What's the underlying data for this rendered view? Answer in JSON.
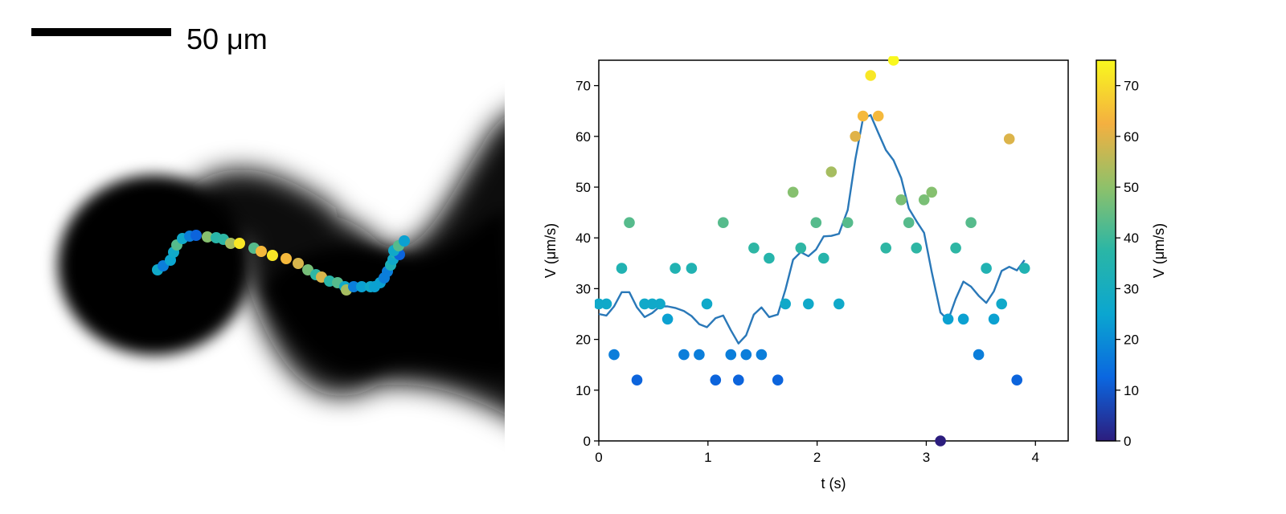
{
  "scale_bar": {
    "label": "50 μm"
  },
  "colors": {
    "line": "#2a78b8",
    "colormap_stops": [
      "#2c1d7e",
      "#0b67e0",
      "#0ba6d0",
      "#2ab6a6",
      "#8ec16a",
      "#f4b040",
      "#f9f81e"
    ]
  },
  "micrograph": {
    "description_icon": "bacterium-cell-image",
    "track_points": [
      {
        "x": 196,
        "y": 336,
        "v": 27
      },
      {
        "x": 203,
        "y": 331,
        "v": 17
      },
      {
        "x": 212,
        "y": 324,
        "v": 25
      },
      {
        "x": 216,
        "y": 314,
        "v": 27
      },
      {
        "x": 220,
        "y": 305,
        "v": 43
      },
      {
        "x": 227,
        "y": 297,
        "v": 27
      },
      {
        "x": 236,
        "y": 294,
        "v": 17
      },
      {
        "x": 244,
        "y": 293,
        "v": 12
      },
      {
        "x": 258,
        "y": 295,
        "v": 49
      },
      {
        "x": 269,
        "y": 296,
        "v": 37
      },
      {
        "x": 278,
        "y": 298,
        "v": 38
      },
      {
        "x": 287,
        "y": 303,
        "v": 53
      },
      {
        "x": 298,
        "y": 303,
        "v": 72
      },
      {
        "x": 316,
        "y": 309,
        "v": 43
      },
      {
        "x": 325,
        "y": 313,
        "v": 64
      },
      {
        "x": 339,
        "y": 318,
        "v": 72
      },
      {
        "x": 356,
        "y": 322,
        "v": 64
      },
      {
        "x": 371,
        "y": 328,
        "v": 59
      },
      {
        "x": 383,
        "y": 336,
        "v": 47
      },
      {
        "x": 393,
        "y": 342,
        "v": 38
      },
      {
        "x": 400,
        "y": 345,
        "v": 59
      },
      {
        "x": 410,
        "y": 350,
        "v": 37
      },
      {
        "x": 420,
        "y": 352,
        "v": 43
      },
      {
        "x": 429,
        "y": 357,
        "v": 27
      },
      {
        "x": 431,
        "y": 361,
        "v": 53
      },
      {
        "x": 440,
        "y": 357,
        "v": 17
      },
      {
        "x": 450,
        "y": 357,
        "v": 24
      },
      {
        "x": 461,
        "y": 357,
        "v": 27
      },
      {
        "x": 466,
        "y": 357,
        "v": 24
      },
      {
        "x": 473,
        "y": 352,
        "v": 24
      },
      {
        "x": 478,
        "y": 346,
        "v": 17
      },
      {
        "x": 482,
        "y": 338,
        "v": 17
      },
      {
        "x": 486,
        "y": 330,
        "v": 33
      },
      {
        "x": 489,
        "y": 323,
        "v": 27
      },
      {
        "x": 492,
        "y": 315,
        "v": 33
      },
      {
        "x": 497,
        "y": 317,
        "v": 12
      },
      {
        "x": 490,
        "y": 312,
        "v": 27
      },
      {
        "x": 496,
        "y": 306,
        "v": 43
      },
      {
        "x": 503,
        "y": 300,
        "v": 24
      }
    ]
  },
  "chart_data": {
    "type": "scatter",
    "title": "",
    "xlabel": "t (s)",
    "ylabel": "V (μm/s)",
    "xlim": [
      0,
      4.3
    ],
    "ylim": [
      0,
      75
    ],
    "xticks": [
      0,
      1,
      2,
      3,
      4
    ],
    "yticks": [
      0,
      10,
      20,
      30,
      40,
      50,
      60,
      70
    ],
    "grid": false,
    "colorbar": {
      "label": "V (μm/s)",
      "range": [
        0,
        75
      ],
      "ticks": [
        0,
        10,
        20,
        30,
        40,
        50,
        60,
        70
      ]
    },
    "scatter": {
      "x": [
        0.0,
        0.07,
        0.14,
        0.21,
        0.28,
        0.35,
        0.42,
        0.49,
        0.56,
        0.63,
        0.7,
        0.78,
        0.85,
        0.92,
        0.99,
        1.07,
        1.14,
        1.21,
        1.28,
        1.35,
        1.42,
        1.49,
        1.56,
        1.64,
        1.71,
        1.78,
        1.85,
        1.92,
        1.99,
        2.06,
        2.13,
        2.2,
        2.28,
        2.35,
        2.42,
        2.49,
        2.56,
        2.63,
        2.7,
        2.77,
        2.84,
        2.91,
        2.98,
        3.05,
        3.13,
        3.2,
        3.27,
        3.34,
        3.41,
        3.48,
        3.55,
        3.62,
        3.69,
        3.76,
        3.83,
        3.9
      ],
      "y": [
        27,
        27,
        17,
        34,
        43,
        12,
        27,
        27,
        27,
        24,
        34,
        17,
        34,
        17,
        27,
        12,
        43,
        17,
        12,
        17,
        38,
        17,
        36,
        12,
        27,
        49,
        38,
        27,
        43,
        36,
        53,
        27,
        43,
        60,
        64,
        72,
        64,
        38,
        75,
        47.5,
        43,
        38,
        47.5,
        49,
        0,
        24,
        38,
        24,
        43,
        17,
        34,
        24,
        27,
        59.5,
        12,
        34
      ]
    },
    "series": [
      {
        "type": "line",
        "x": [
          0.0,
          0.07,
          0.14,
          0.21,
          0.28,
          0.35,
          0.42,
          0.49,
          0.56,
          0.63,
          0.7,
          0.78,
          0.85,
          0.92,
          0.99,
          1.07,
          1.14,
          1.21,
          1.28,
          1.35,
          1.42,
          1.49,
          1.56,
          1.64,
          1.71,
          1.78,
          1.85,
          1.92,
          1.99,
          2.06,
          2.13,
          2.2,
          2.28,
          2.35,
          2.42,
          2.49,
          2.56,
          2.63,
          2.7,
          2.77,
          2.84,
          2.91,
          2.98,
          3.05,
          3.13,
          3.2,
          3.27,
          3.34,
          3.41,
          3.48,
          3.55,
          3.62,
          3.69,
          3.76,
          3.83,
          3.9
        ],
        "y": [
          25,
          24.7,
          26.5,
          29.3,
          29.3,
          26.3,
          24.4,
          25.2,
          26.5,
          26.5,
          26.2,
          25.6,
          24.6,
          23.0,
          22.4,
          24.2,
          24.7,
          21.8,
          19.2,
          20.8,
          24.9,
          26.3,
          24.4,
          24.9,
          29.8,
          35.7,
          37.2,
          36.4,
          37.7,
          40.3,
          40.4,
          40.8,
          45.5,
          55.5,
          63.5,
          64.2,
          60.7,
          57.3,
          55.3,
          51.8,
          45.8,
          43.3,
          41,
          33.3,
          25.3,
          23.8,
          28,
          31.4,
          30.4,
          28.6,
          27.2,
          29.5,
          33.5,
          34.3,
          33.6,
          35.6
        ]
      }
    ]
  }
}
